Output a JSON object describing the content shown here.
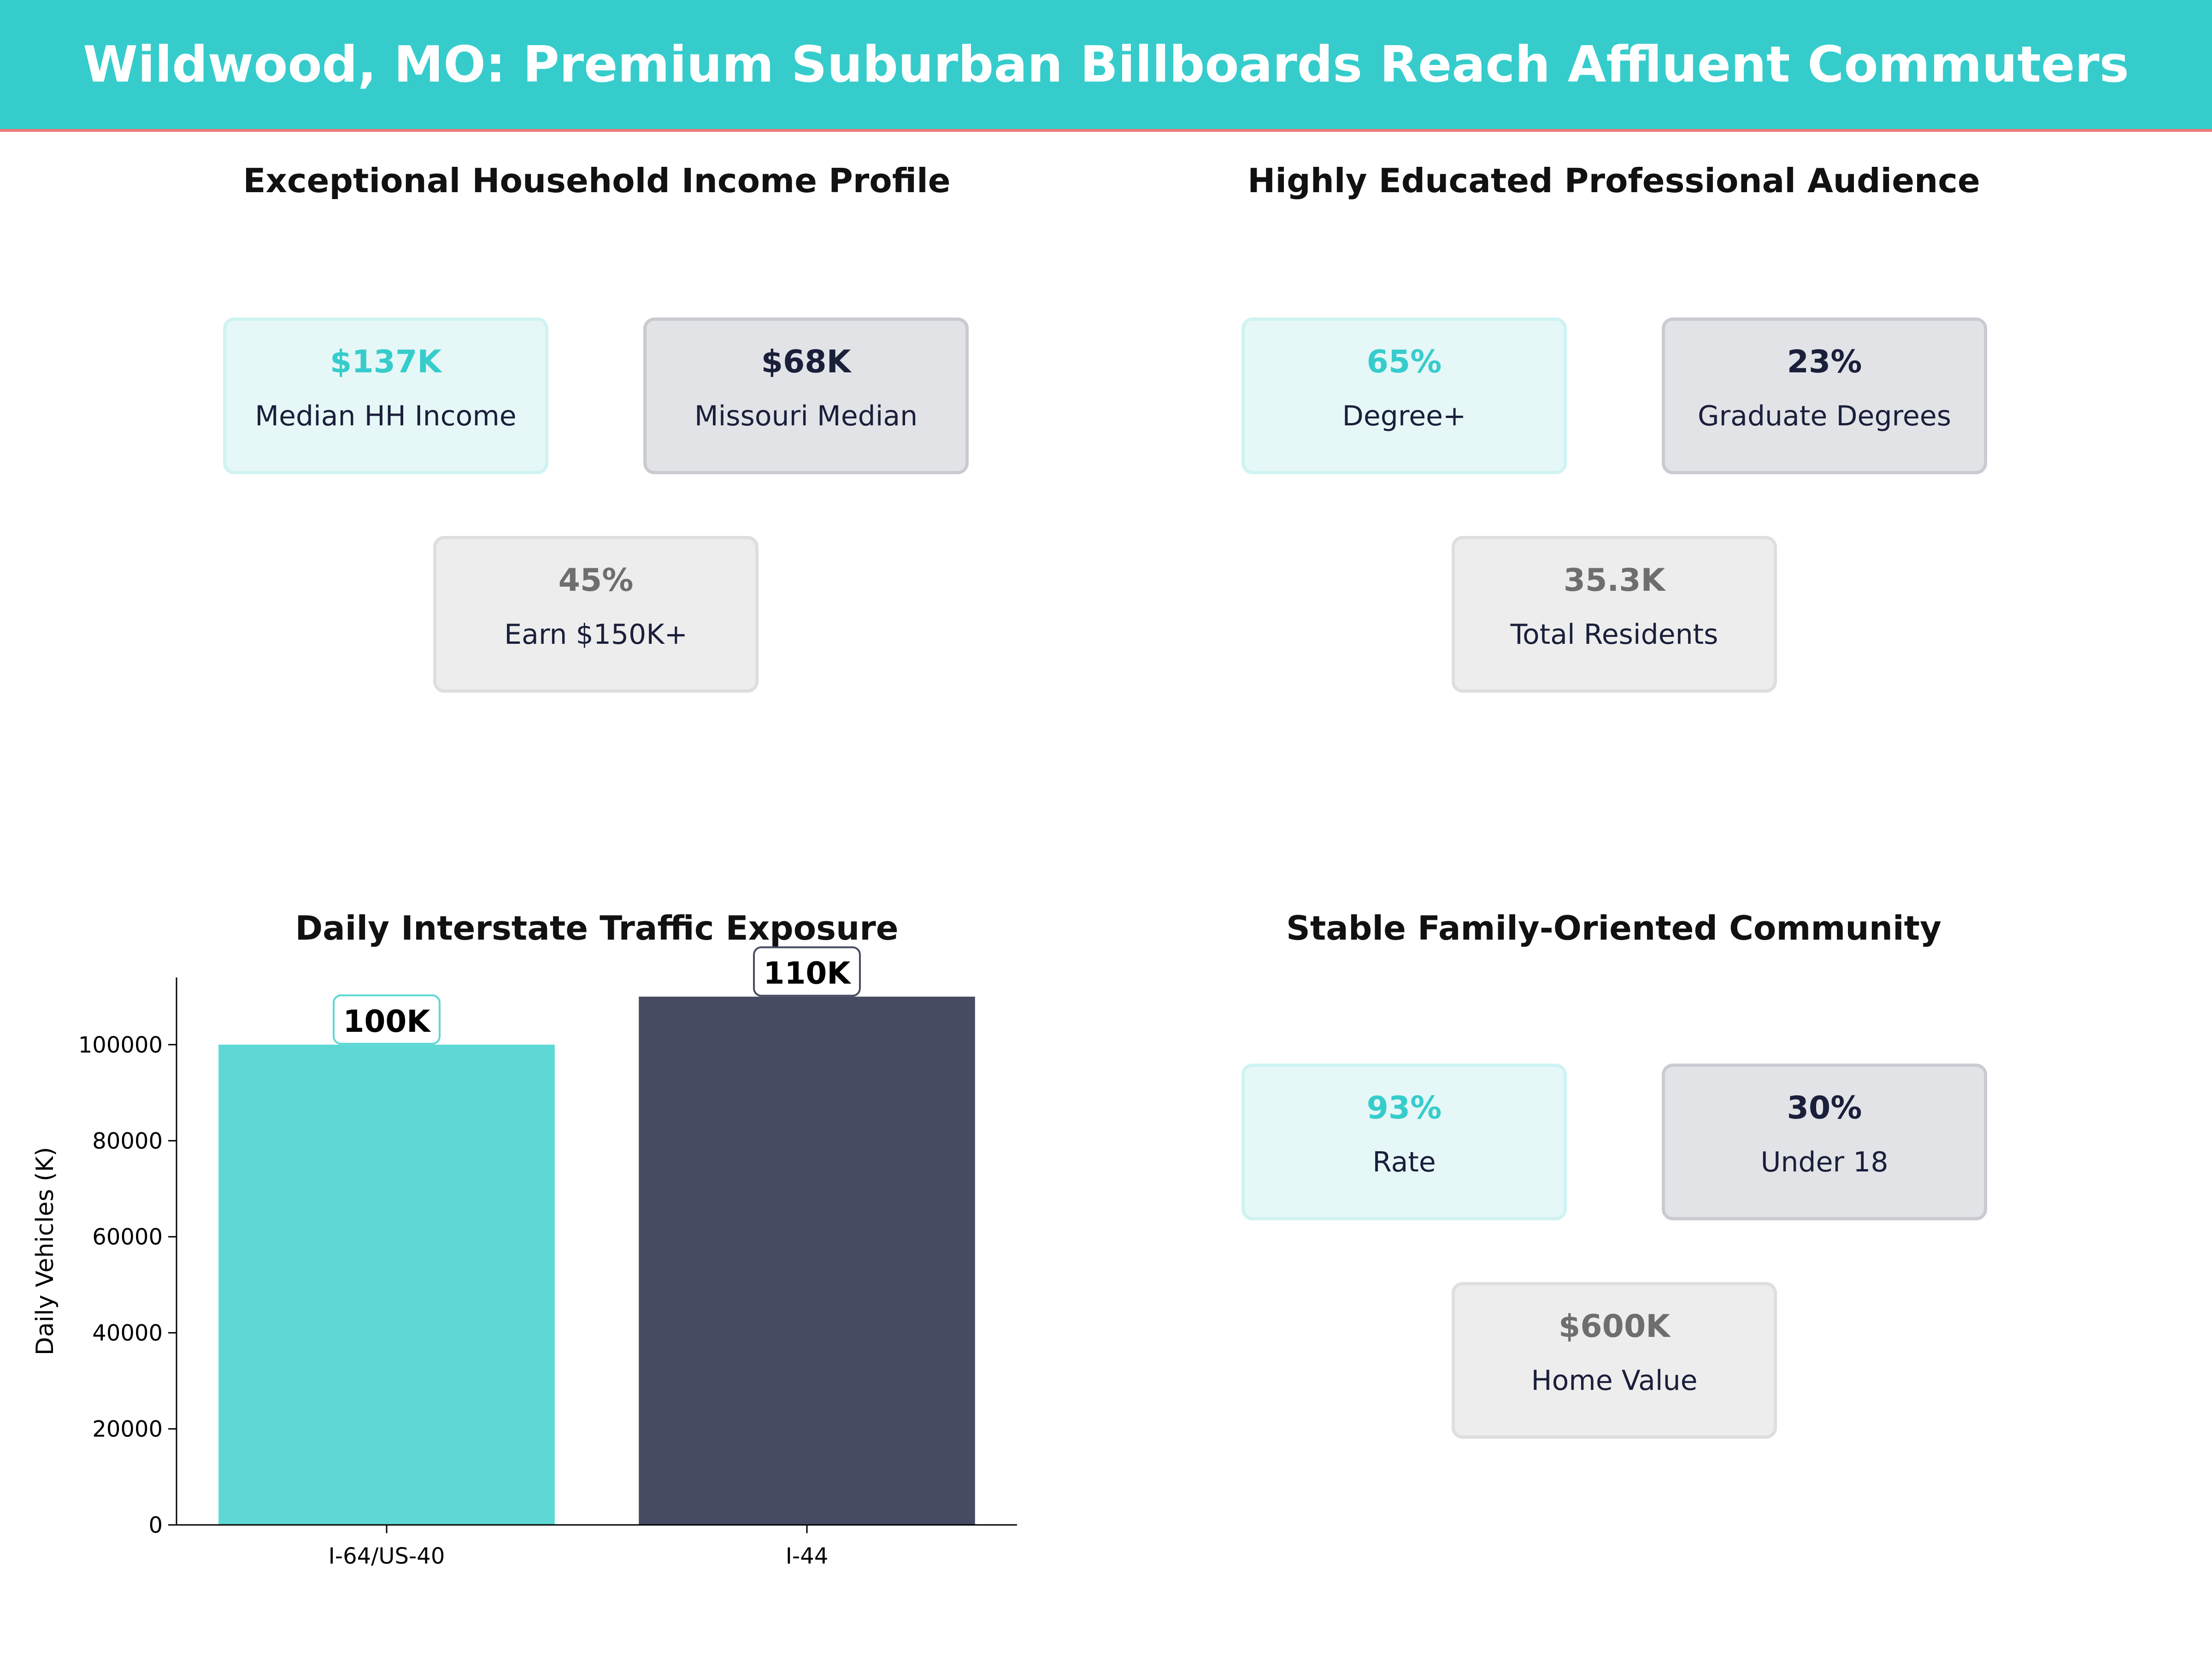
{
  "header": {
    "title": "Wildwood, MO: Premium Suburban Billboards Reach Affluent Commuters"
  },
  "colors": {
    "header": "#36CCCC",
    "accent_line": "#F07878",
    "teal": "#36CCCC",
    "navy": "#1A1F3A",
    "gray": "#6E6E6E",
    "bar_teal": "#5DD8D4",
    "bar_dark": "#464B61"
  },
  "panels": [
    {
      "title": "Exceptional Household Income Profile",
      "cards": [
        {
          "value": "$137K",
          "label": "Median HH Income"
        },
        {
          "value": "$68K",
          "label": "Missouri Median"
        },
        {
          "value": "45%",
          "label": "Earn $150K+"
        }
      ]
    },
    {
      "title": "Highly Educated Professional Audience",
      "cards": [
        {
          "value": "65%",
          "label": "Degree+"
        },
        {
          "value": "23%",
          "label": "Graduate Degrees"
        },
        {
          "value": "35.3K",
          "label": "Total Residents"
        }
      ]
    },
    {
      "title": "Stable Family-Oriented Community",
      "cards": [
        {
          "value": "93%",
          "label": "Rate"
        },
        {
          "value": "30%",
          "label": "Under 18"
        },
        {
          "value": "$600K",
          "label": "Home Value"
        }
      ]
    }
  ],
  "chart_data": {
    "type": "bar",
    "title": "Daily Interstate Traffic Exposure",
    "xlabel": "",
    "ylabel": "Daily Vehicles (K)",
    "categories": [
      "I-64/US-40",
      "I-44"
    ],
    "values": [
      100000,
      110000
    ],
    "data_labels": [
      "100K",
      "110K"
    ],
    "bar_colors": [
      "#5DD8D4",
      "#464B61"
    ],
    "ylim": [
      0,
      114000
    ],
    "yticks": [
      0,
      20000,
      40000,
      60000,
      80000,
      100000
    ],
    "grid": false
  }
}
